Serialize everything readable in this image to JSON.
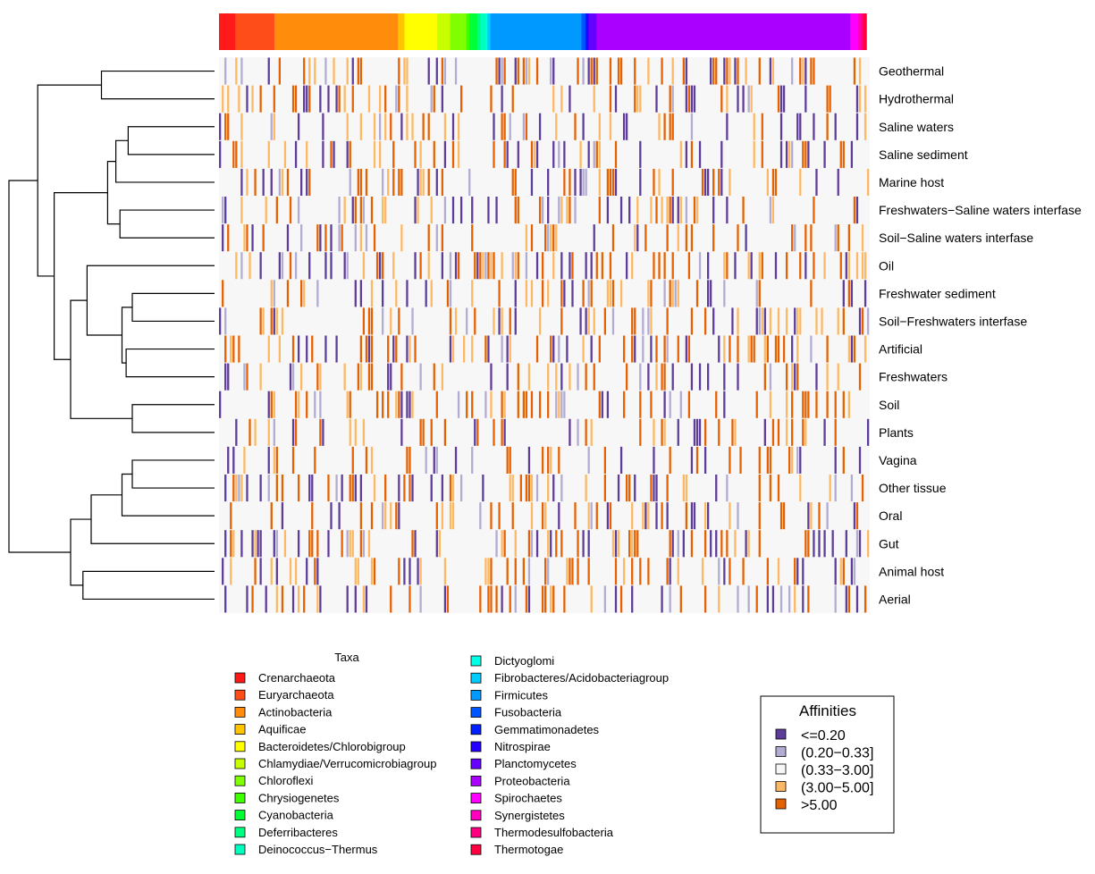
{
  "chart_data": {
    "type": "heatmap",
    "rows": [
      "Geothermal",
      "Hydrothermal",
      "Saline waters",
      "Saline sediment",
      "Marine host",
      "Freshwaters−Saline waters interfase",
      "Soil−Saline waters interfase",
      "Oil",
      "Freshwater sediment",
      "Soil−Freshwaters interfase",
      "Artificial",
      "Freshwaters",
      "Soil",
      "Plants",
      "Vagina",
      "Other tissue",
      "Oral",
      "Gut",
      "Animal host",
      "Aerial"
    ],
    "taxa_title": "Taxa",
    "taxa": [
      {
        "name": "Crenarchaeota",
        "color": "#ff1a1a"
      },
      {
        "name": "Euryarchaeota",
        "color": "#ff4d1a"
      },
      {
        "name": "Actinobacteria",
        "color": "#ff8c0a"
      },
      {
        "name": "Aquificae",
        "color": "#ffc400"
      },
      {
        "name": "Bacteroidetes/Chlorobigroup",
        "color": "#ffff00"
      },
      {
        "name": "Chlamydiae/Verrucomicrobiagroup",
        "color": "#c8ff00"
      },
      {
        "name": "Chloroflexi",
        "color": "#80ff00"
      },
      {
        "name": "Chrysiogenetes",
        "color": "#40ff00"
      },
      {
        "name": "Cyanobacteria",
        "color": "#00ff33"
      },
      {
        "name": "Deferribacteres",
        "color": "#00ff80"
      },
      {
        "name": "Deinococcus−Thermus",
        "color": "#00ffbf"
      },
      {
        "name": "Dictyoglomi",
        "color": "#00ffe6"
      },
      {
        "name": "Fibrobacteres/Acidobacteriagroup",
        "color": "#00ccff"
      },
      {
        "name": "Firmicutes",
        "color": "#0099ff"
      },
      {
        "name": "Fusobacteria",
        "color": "#0055ff"
      },
      {
        "name": "Gemmatimonadetes",
        "color": "#0020ff"
      },
      {
        "name": "Nitrospirae",
        "color": "#2600ff"
      },
      {
        "name": "Planctomycetes",
        "color": "#6600ff"
      },
      {
        "name": "Proteobacteria",
        "color": "#aa00ff"
      },
      {
        "name": "Spirochaetes",
        "color": "#ff00ff"
      },
      {
        "name": "Synergistetes",
        "color": "#ff00bf"
      },
      {
        "name": "Thermodesulfobacteria",
        "color": "#ff0080"
      },
      {
        "name": "Thermotogae",
        "color": "#ff0040"
      }
    ],
    "taxa_band": [
      {
        "taxon": "Crenarchaeota",
        "share": 0.025
      },
      {
        "taxon": "Euryarchaeota",
        "share": 0.06
      },
      {
        "taxon": "Actinobacteria",
        "share": 0.19
      },
      {
        "taxon": "Aquificae",
        "share": 0.01
      },
      {
        "taxon": "Bacteroidetes/Chlorobigroup",
        "share": 0.05
      },
      {
        "taxon": "Chlamydiae/Verrucomicrobiagroup",
        "share": 0.02
      },
      {
        "taxon": "Chloroflexi",
        "share": 0.025
      },
      {
        "taxon": "Chrysiogenetes",
        "share": 0.005
      },
      {
        "taxon": "Cyanobacteria",
        "share": 0.012
      },
      {
        "taxon": "Deferribacteres",
        "share": 0.005
      },
      {
        "taxon": "Deinococcus−Thermus",
        "share": 0.008
      },
      {
        "taxon": "Dictyoglomi",
        "share": 0.002
      },
      {
        "taxon": "Fibrobacteres/Acidobacteriagroup",
        "share": 0.005
      },
      {
        "taxon": "Firmicutes",
        "share": 0.14
      },
      {
        "taxon": "Fusobacteria",
        "share": 0.006
      },
      {
        "taxon": "Gemmatimonadetes",
        "share": 0.002
      },
      {
        "taxon": "Nitrospirae",
        "share": 0.003
      },
      {
        "taxon": "Planctomycetes",
        "share": 0.012
      },
      {
        "taxon": "Proteobacteria",
        "share": 0.39
      },
      {
        "taxon": "Spirochaetes",
        "share": 0.012
      },
      {
        "taxon": "Synergistetes",
        "share": 0.004
      },
      {
        "taxon": "Thermodesulfobacteria",
        "share": 0.003
      },
      {
        "taxon": "Thermotogae",
        "share": 0.006
      }
    ],
    "affinity_title": "Affinities",
    "affinity_classes": [
      {
        "label": "<=0.20",
        "color": "#5e3c99"
      },
      {
        "label": "(0.20−0.33]",
        "color": "#b2abd2"
      },
      {
        "label": "(0.33−3.00]",
        "color": "#f7f7f7"
      },
      {
        "label": "(3.00−5.00]",
        "color": "#fdb863"
      },
      {
        "label": ">5.00",
        "color": "#e66101"
      }
    ],
    "dendrogram": [
      [
        "Geothermal",
        "Hydrothermal",
        0.55
      ],
      [
        "Saline waters",
        "Saline sediment",
        0.42
      ],
      [
        "c2",
        "Marine host",
        0.48
      ],
      [
        "Freshwaters−Saline waters interfase",
        "Soil−Saline waters interfase",
        0.46
      ],
      [
        "c3",
        "c4",
        0.52
      ],
      [
        "Freshwater sediment",
        "Soil−Freshwaters interfase",
        0.4
      ],
      [
        "Artificial",
        "Freshwaters",
        0.43
      ],
      [
        "c6",
        "c7",
        0.45
      ],
      [
        "Oil",
        "c8",
        0.62
      ],
      [
        "Soil",
        "Plants",
        0.4
      ],
      [
        "c9",
        "c10",
        0.7
      ],
      [
        "c5",
        "c11",
        0.78
      ],
      [
        "c1",
        "c12",
        0.86
      ],
      [
        "Vagina",
        "Other tissue",
        0.4
      ],
      [
        "c14",
        "Oral",
        0.45
      ],
      [
        "c15",
        "Gut",
        0.6
      ],
      [
        "Animal host",
        "Aerial",
        0.64
      ],
      [
        "c16",
        "c17",
        0.7
      ],
      [
        "c13",
        "c18",
        1.0
      ]
    ],
    "legend": "bottom"
  }
}
